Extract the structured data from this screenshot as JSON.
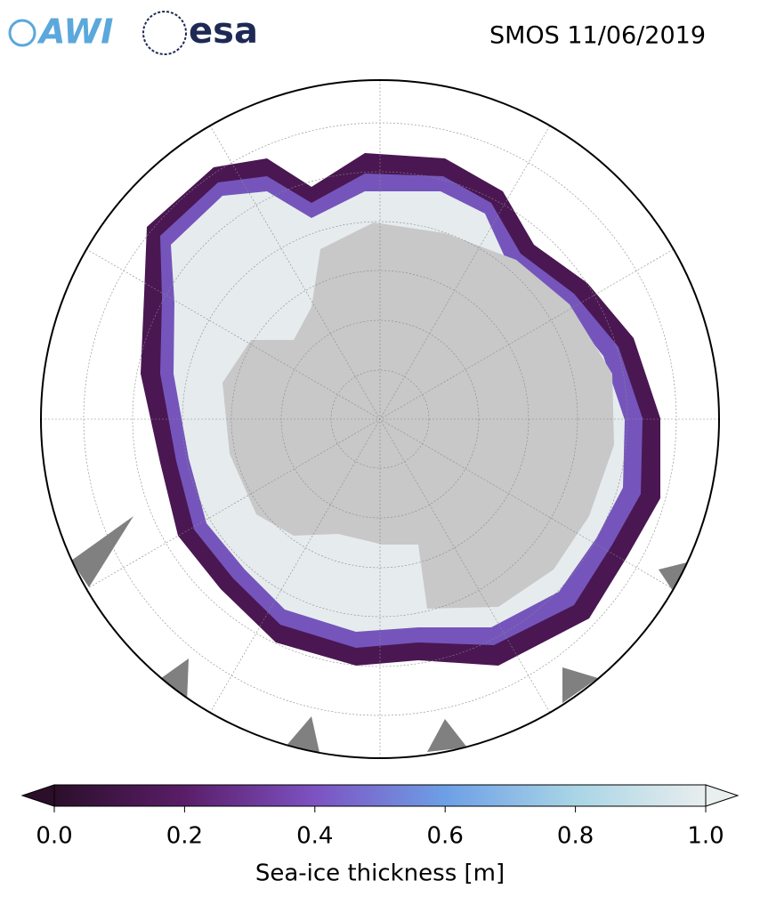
{
  "logos": [
    "AWI",
    "esa"
  ],
  "chart_data": {
    "type": "map",
    "title": "SMOS 11/06/2019",
    "colorbar": {
      "label": "Sea-ice thickness [m]",
      "lim": [
        0,
        1
      ],
      "ticks": [
        {
          "value": 0,
          "label": "0.0"
        },
        0.2,
        0.4,
        0.6,
        0.8,
        {
          "value": 1,
          "label": "1.0"
        }
      ],
      "colors": [
        "#2b0f2a",
        "#5a1d68",
        "#7d52c2",
        "#6d9fe6",
        "#a9d5e5",
        "#e9eeee"
      ],
      "extend": "both"
    }
  }
}
